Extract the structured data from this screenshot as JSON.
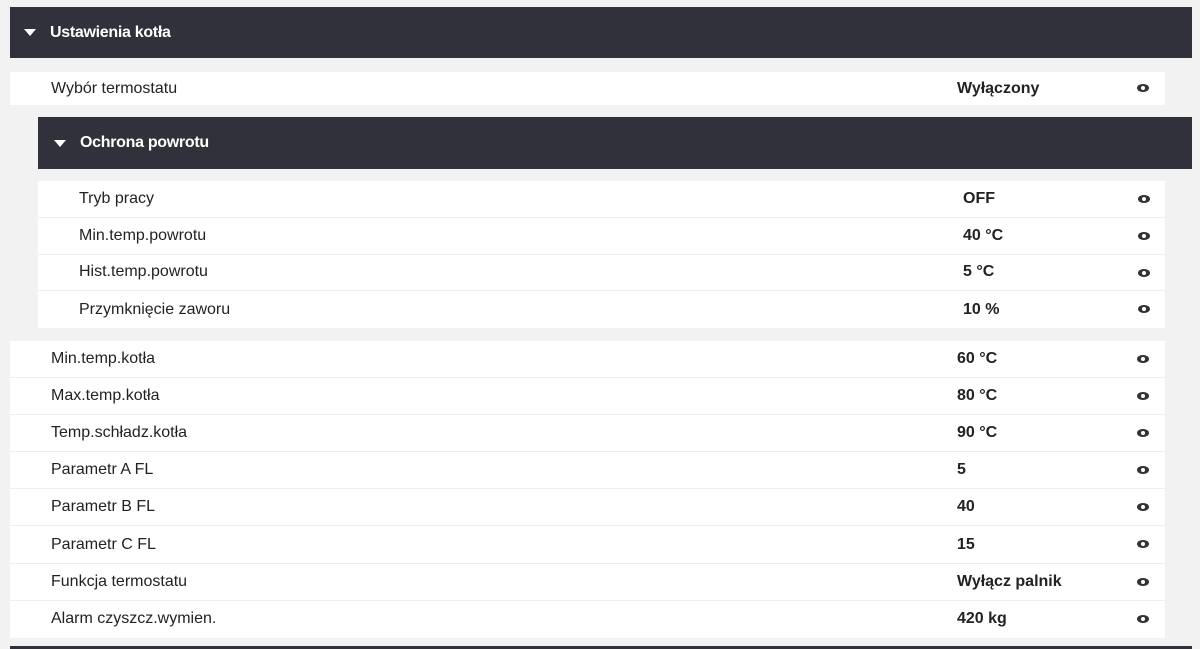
{
  "section": {
    "title": "Ustawienia kotła",
    "icon": "caret-down-icon"
  },
  "top_rows": [
    {
      "label": "Wybór termostatu",
      "value": "Wyłączony"
    }
  ],
  "subsection": {
    "title": "Ochrona powrotu",
    "icon": "caret-down-icon",
    "rows": [
      {
        "label": "Tryb pracy",
        "value": "OFF"
      },
      {
        "label": "Min.temp.powrotu",
        "value": "40 °C"
      },
      {
        "label": "Hist.temp.powrotu",
        "value": "5 °C"
      },
      {
        "label": "Przymknięcie zaworu",
        "value": "10 %"
      }
    ]
  },
  "rows": [
    {
      "label": "Min.temp.kotła",
      "value": "60 °C"
    },
    {
      "label": "Max.temp.kotła",
      "value": "80 °C"
    },
    {
      "label": "Temp.schładz.kotła",
      "value": "90 °C"
    },
    {
      "label": "Parametr A FL",
      "value": "5"
    },
    {
      "label": "Parametr B FL",
      "value": "40"
    },
    {
      "label": "Parametr C FL",
      "value": "15"
    },
    {
      "label": "Funkcja termostatu",
      "value": "Wyłącz palnik"
    },
    {
      "label": "Alarm czyszcz.wymien.",
      "value": "420 kg"
    }
  ],
  "row_icon": "eye-icon"
}
